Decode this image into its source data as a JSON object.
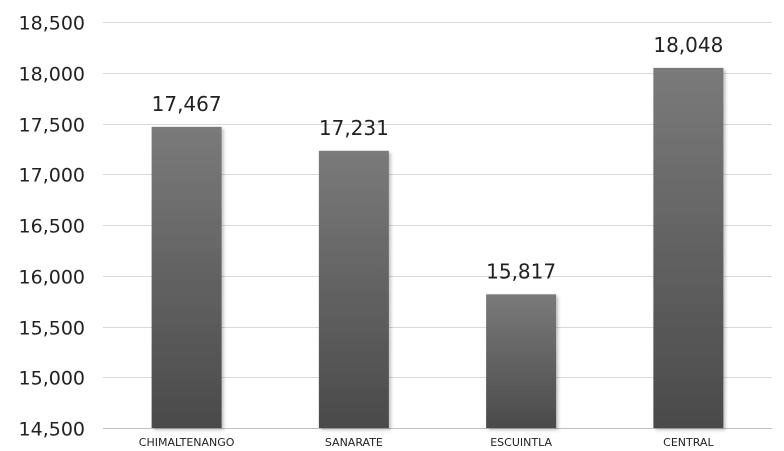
{
  "chart_data": {
    "type": "bar",
    "categories": [
      "CHIMALTENANGO",
      "SANARATE",
      "ESCUINTLA",
      "CENTRAL"
    ],
    "values": [
      17467,
      17231,
      15817,
      18048
    ],
    "data_labels": [
      "17,467",
      "17,231",
      "15,817",
      "18,048"
    ],
    "ylim": [
      14500,
      18500
    ],
    "yticks": [
      14500,
      15000,
      15500,
      16000,
      16500,
      17000,
      17500,
      18000,
      18500
    ],
    "ytick_labels": [
      "14,500",
      "15,000",
      "15,500",
      "16,000",
      "16,500",
      "17,000",
      "17,500",
      "18,000",
      "18,500"
    ],
    "grid": true,
    "legend": "none",
    "colors": {
      "bar_top": "#7a7a7a",
      "bar_bottom": "#4a4a4a",
      "grid": "#d9d9d9",
      "text": "#222222"
    }
  }
}
